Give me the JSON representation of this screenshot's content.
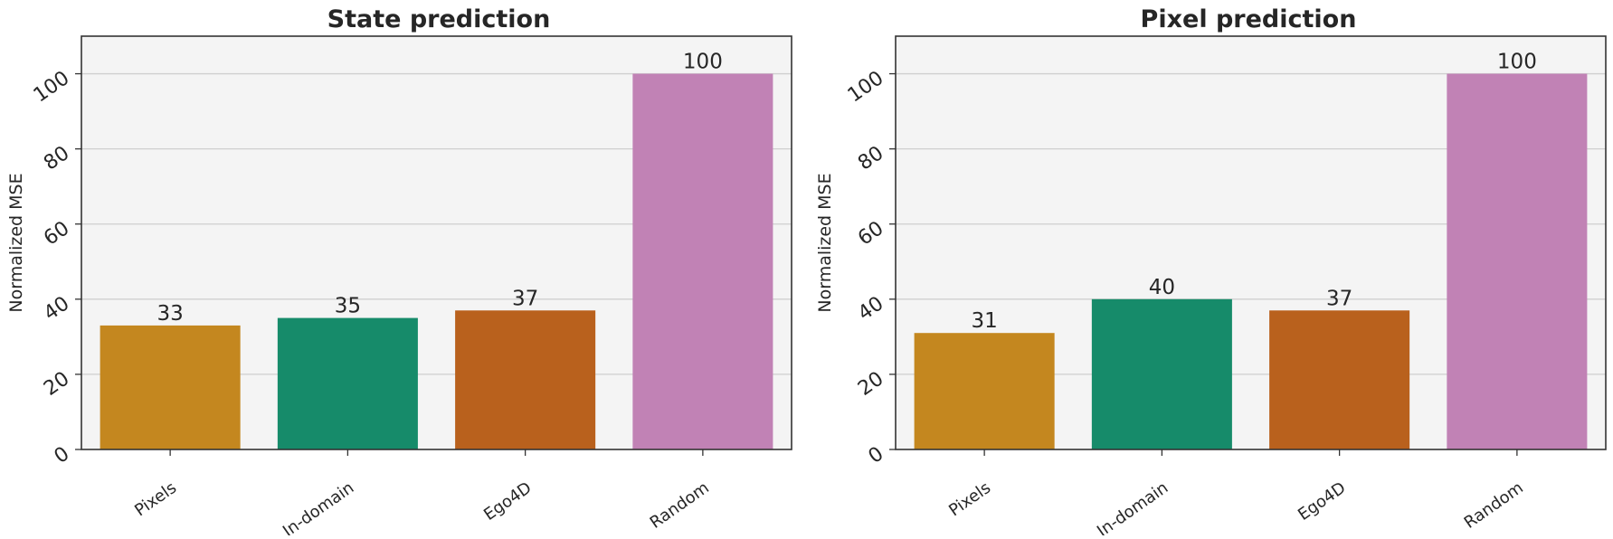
{
  "chart_data": [
    {
      "type": "bar",
      "title": "State prediction",
      "xlabel": "",
      "ylabel": "Normalized MSE",
      "categories": [
        "Pixels",
        "In-domain",
        "Ego4D",
        "Random"
      ],
      "values": [
        33,
        35,
        37,
        100
      ],
      "data_labels": [
        "33",
        "35",
        "37",
        "100"
      ],
      "ylim": [
        0,
        110
      ],
      "yticks": [
        0,
        20,
        40,
        60,
        80,
        100
      ],
      "ytick_labels": [
        "0",
        "20",
        "40",
        "60",
        "80",
        "100"
      ],
      "grid": "horizontal",
      "legend": "none"
    },
    {
      "type": "bar",
      "title": "Pixel prediction",
      "xlabel": "",
      "ylabel": "Normalized MSE",
      "categories": [
        "Pixels",
        "In-domain",
        "Ego4D",
        "Random"
      ],
      "values": [
        31,
        40,
        37,
        100
      ],
      "data_labels": [
        "31",
        "40",
        "37",
        "100"
      ],
      "ylim": [
        0,
        110
      ],
      "yticks": [
        0,
        20,
        40,
        60,
        80,
        100
      ],
      "ytick_labels": [
        "0",
        "20",
        "40",
        "60",
        "80",
        "100"
      ],
      "grid": "horizontal",
      "legend": "none"
    }
  ],
  "colors": {
    "bars": [
      "#c4871f",
      "#168b6a",
      "#b9611d",
      "#c182b5"
    ],
    "plot_background": "#f4f4f4",
    "grid": "#cfcfcf",
    "axis": "#333333",
    "text": "#262626"
  }
}
